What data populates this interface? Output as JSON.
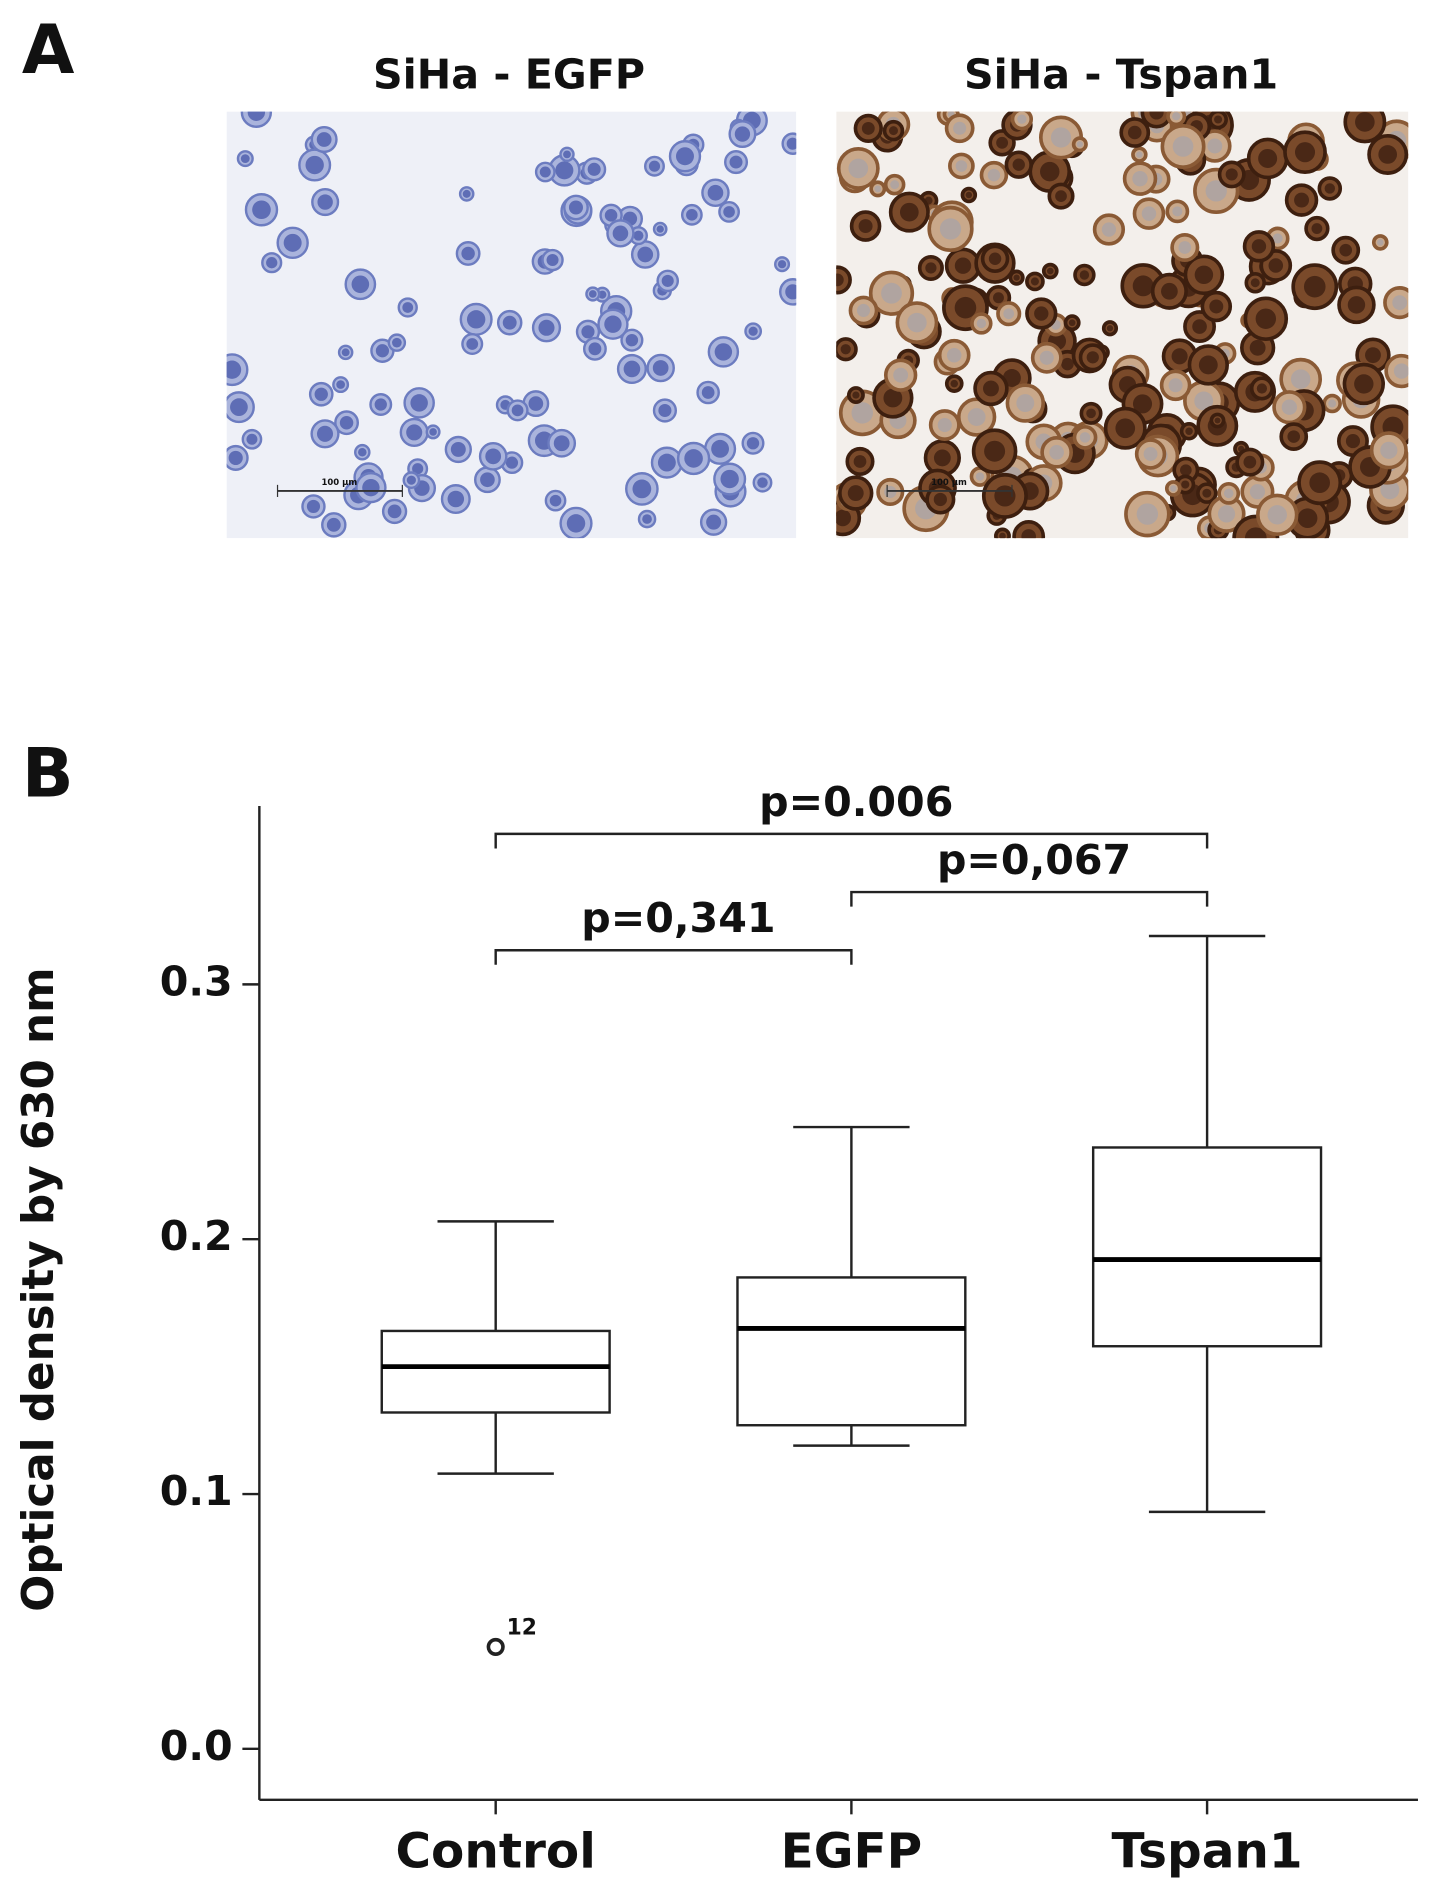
{
  "panel_a": {
    "label": "A",
    "images": [
      {
        "title": "SiHa - EGFP",
        "scale_bar": "100 µm",
        "stain": "blue"
      },
      {
        "title": "SiHa - Tspan1",
        "scale_bar": "100 µm",
        "stain": "brown"
      }
    ]
  },
  "chart_data": {
    "type": "box",
    "panel_label": "B",
    "y_label": "Optical density by 630 nm",
    "categories": [
      "Control",
      "EGFP",
      "Tspan1"
    ],
    "boxes": [
      {
        "whisker_low": 0.108,
        "q1": 0.132,
        "median": 0.15,
        "q3": 0.164,
        "whisker_high": 0.207,
        "outliers": [
          {
            "value": 0.04,
            "id": "12"
          }
        ]
      },
      {
        "whisker_low": 0.119,
        "q1": 0.127,
        "median": 0.165,
        "q3": 0.185,
        "whisker_high": 0.244,
        "outliers": []
      },
      {
        "whisker_low": 0.093,
        "q1": 0.158,
        "median": 0.192,
        "q3": 0.236,
        "whisker_high": 0.319,
        "outliers": []
      }
    ],
    "annotations": [
      {
        "text": "p=0.006",
        "between": [
          "Control",
          "Tspan1"
        ]
      },
      {
        "text": "p=0,067",
        "between": [
          "EGFP",
          "Tspan1"
        ]
      },
      {
        "text": "p=0,341",
        "between": [
          "Control",
          "EGFP"
        ]
      }
    ],
    "ylim": [
      -0.02,
      0.37
    ],
    "yticks": [
      {
        "value": 0,
        "label": "0.0"
      },
      0.1,
      0.2,
      0.3
    ],
    "color": "#000000"
  }
}
